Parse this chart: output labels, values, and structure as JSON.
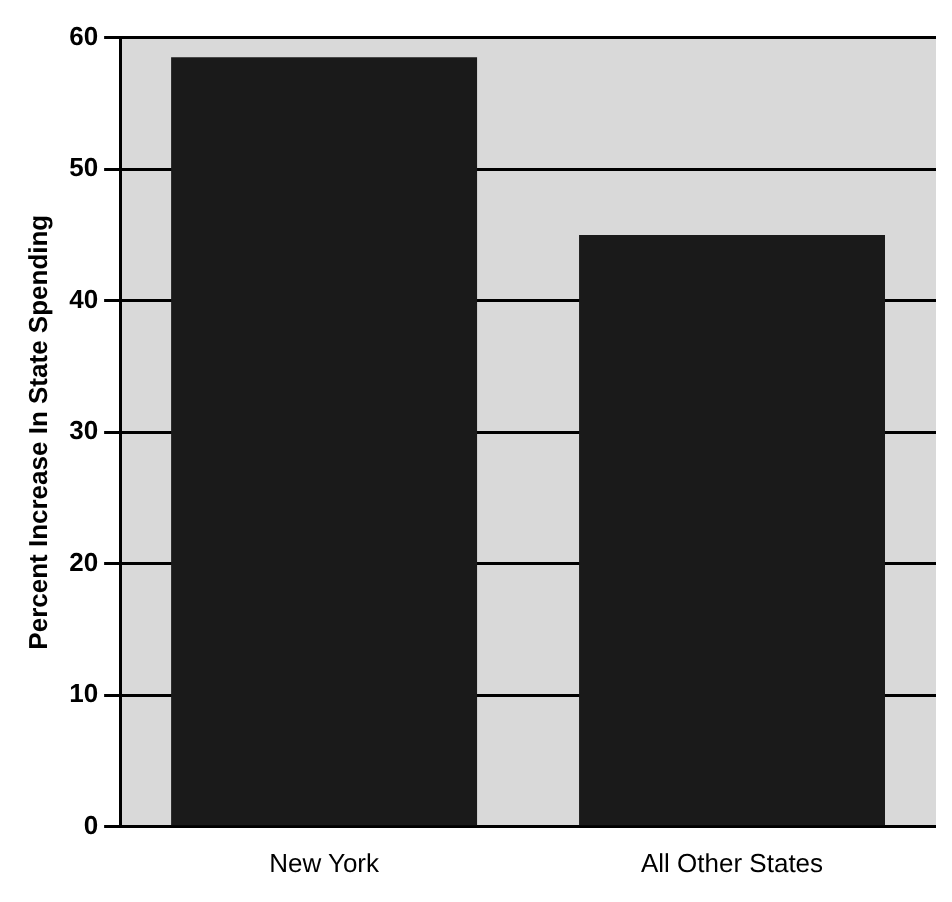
{
  "chart_data": {
    "type": "bar",
    "ylabel": "Percent Increase In State Spending",
    "categories": [
      "New York",
      "All Other States"
    ],
    "series": [
      {
        "color": "#1a1a1a",
        "values": [
          58.5,
          45
        ]
      }
    ],
    "ylim": [
      0,
      60
    ],
    "yticks": [
      0,
      10,
      20,
      30,
      40,
      50,
      60
    ],
    "grid": "y",
    "legend": false
  }
}
